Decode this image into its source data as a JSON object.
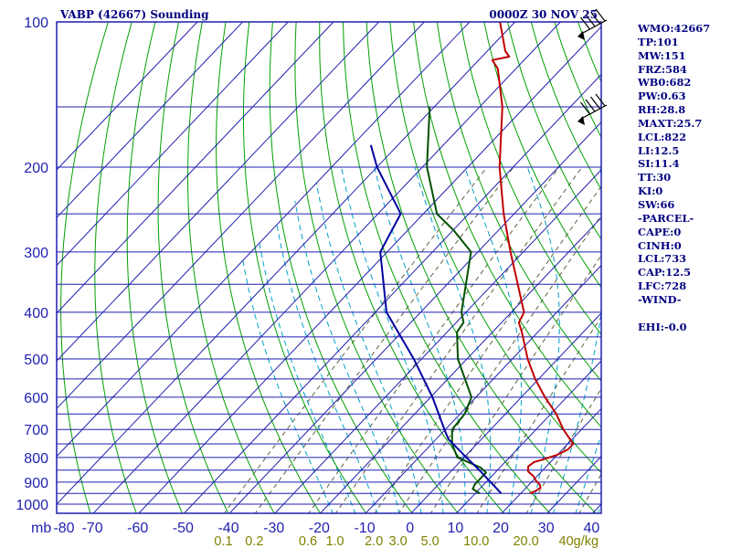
{
  "header": {
    "station": "VABP (42667) Sounding",
    "time": "0000Z 30 NOV 25"
  },
  "indices": [
    "WMO:42667",
    "TP:101",
    "MW:151",
    "FRZ:584",
    "WB0:682",
    "PW:0.63",
    "RH:28.8",
    "MAXT:25.7",
    "LCL:822",
    "LI:12.5",
    "SI:11.4",
    "TT:30",
    "KI:0",
    "SW:66",
    "-PARCEL-",
    "CAPE:0",
    "CINH:0",
    "LCL:733",
    "CAP:12.5",
    "LFC:728",
    "-WIND-",
    "",
    "EHI:-0.0"
  ],
  "colors": {
    "background": "#ffffff",
    "isobar": "#1f1fb0",
    "isotherm": "#1f1fb0",
    "dry_adiabat": "#00a000",
    "moist_adiabat": "#00a0c8",
    "mixing_ratio": "#606040",
    "temperature": "#c00000",
    "dewpoint": "#005000",
    "parcel": "#0000a0",
    "text": "#000080",
    "mixing_label": "#808000"
  },
  "chart_data": {
    "type": "line",
    "chart_kind": "skew-T log-P sounding",
    "y_axis": {
      "scale": "log",
      "range": [
        1050,
        100
      ],
      "ticks": [
        100,
        200,
        300,
        400,
        500,
        600,
        700,
        800,
        900,
        1000
      ],
      "unit_label": "mb"
    },
    "x_axis": {
      "range": [
        -80,
        40
      ],
      "ticks": [
        -80,
        -70,
        -60,
        -50,
        -40,
        -30,
        -20,
        -10,
        0,
        10,
        20,
        30,
        40
      ]
    },
    "mixing_ratio_labels": [
      "0.1",
      "0.2",
      "0.6",
      "1.0",
      "2.0",
      "3.0",
      "5.0",
      "10.0",
      "20.0",
      "40g/kg"
    ],
    "series": [
      {
        "id": "temperature",
        "points": [
          [
            950,
            22.0
          ],
          [
            940,
            22.7
          ],
          [
            925,
            23.2
          ],
          [
            910,
            22.3
          ],
          [
            895,
            20.8
          ],
          [
            875,
            19.2
          ],
          [
            855,
            17.0
          ],
          [
            835,
            16.0
          ],
          [
            818,
            16.4
          ],
          [
            808,
            17.8
          ],
          [
            790,
            20.0
          ],
          [
            770,
            21.2
          ],
          [
            750,
            21.2
          ],
          [
            700,
            16.0
          ],
          [
            650,
            11.2
          ],
          [
            600,
            5.2
          ],
          [
            550,
            -0.8
          ],
          [
            500,
            -6.6
          ],
          [
            440,
            -13.5
          ],
          [
            420,
            -16.2
          ],
          [
            400,
            -17.2
          ],
          [
            300,
            -32.8
          ],
          [
            250,
            -42.3
          ],
          [
            200,
            -53.0
          ],
          [
            150,
            -65.0
          ],
          [
            125,
            -74.0
          ],
          [
            120,
            -77.0
          ],
          [
            118,
            -74.0
          ],
          [
            115,
            -76.0
          ],
          [
            100,
            -83.3
          ]
        ]
      },
      {
        "id": "dewpoint",
        "points": [
          [
            950,
            11.0
          ],
          [
            930,
            8.5
          ],
          [
            910,
            8.0
          ],
          [
            860,
            8.0
          ],
          [
            840,
            5.8
          ],
          [
            800,
            -1.5
          ],
          [
            750,
            -5.5
          ],
          [
            700,
            -8.5
          ],
          [
            650,
            -9.0
          ],
          [
            600,
            -11.0
          ],
          [
            500,
            -22.0
          ],
          [
            440,
            -27.8
          ],
          [
            420,
            -28.4
          ],
          [
            400,
            -31.0
          ],
          [
            300,
            -41.5
          ],
          [
            270,
            -50.0
          ],
          [
            250,
            -57.0
          ],
          [
            200,
            -69.0
          ],
          [
            150,
            -81.0
          ]
        ]
      },
      {
        "id": "parcel",
        "points": [
          [
            950,
            15.7
          ],
          [
            900,
            11.0
          ],
          [
            850,
            6.0
          ],
          [
            800,
            0.5
          ],
          [
            733,
            -7.3
          ],
          [
            700,
            -10.2
          ],
          [
            600,
            -19.6
          ],
          [
            500,
            -31.7
          ],
          [
            400,
            -47.5
          ],
          [
            300,
            -61.5
          ],
          [
            250,
            -65.0
          ],
          [
            200,
            -80.0
          ],
          [
            180,
            -86.0
          ]
        ]
      }
    ],
    "wind_barbs": [
      {
        "pressure": 100
      },
      {
        "pressure": 150
      }
    ]
  }
}
